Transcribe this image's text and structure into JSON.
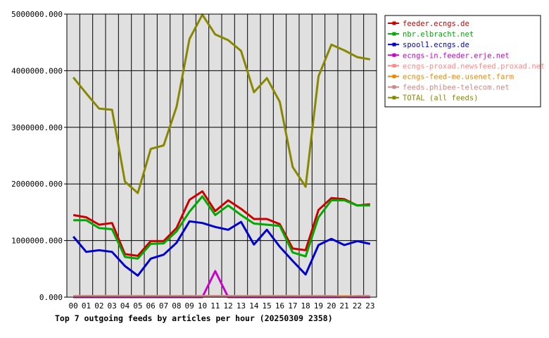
{
  "chart_data": {
    "type": "line",
    "title": "Top 7 outgoing feeds by articles per hour (20250309 2358)",
    "xlabel": "",
    "ylabel": "",
    "ylim": [
      0,
      5000000
    ],
    "yticks": [
      0,
      1000000,
      2000000,
      3000000,
      4000000,
      5000000
    ],
    "ytick_labels": [
      "0.000",
      "1000000.000",
      "2000000.000",
      "3000000.000",
      "4000000.000",
      "5000000.000"
    ],
    "grid": true,
    "legend_position": "right",
    "categories": [
      "00",
      "01",
      "02",
      "03",
      "04",
      "05",
      "06",
      "07",
      "08",
      "09",
      "10",
      "11",
      "12",
      "13",
      "14",
      "15",
      "16",
      "17",
      "18",
      "19",
      "20",
      "21",
      "22",
      "23"
    ],
    "series": [
      {
        "name": "feeder.ecngs.de",
        "color": "#cc0000",
        "values": [
          1450000,
          1410000,
          1280000,
          1310000,
          760000,
          730000,
          990000,
          990000,
          1220000,
          1720000,
          1870000,
          1520000,
          1710000,
          1560000,
          1380000,
          1380000,
          1290000,
          860000,
          830000,
          1540000,
          1750000,
          1730000,
          1620000,
          1640000
        ]
      },
      {
        "name": "nbr.elbracht.net",
        "color": "#00aa00",
        "values": [
          1360000,
          1360000,
          1220000,
          1200000,
          710000,
          680000,
          940000,
          950000,
          1160000,
          1510000,
          1780000,
          1450000,
          1620000,
          1450000,
          1300000,
          1280000,
          1260000,
          790000,
          720000,
          1410000,
          1710000,
          1710000,
          1620000,
          1620000
        ]
      },
      {
        "name": "spool1.ecngs.de",
        "color": "#0000cc",
        "values": [
          1070000,
          800000,
          830000,
          800000,
          550000,
          380000,
          680000,
          750000,
          960000,
          1340000,
          1310000,
          1240000,
          1190000,
          1330000,
          930000,
          1190000,
          890000,
          640000,
          400000,
          920000,
          1030000,
          920000,
          990000,
          940000
        ]
      },
      {
        "name": "ecngs-in.feeder.erje.net",
        "color": "#cc00cc",
        "values": [
          0,
          0,
          0,
          0,
          0,
          0,
          0,
          0,
          0,
          0,
          0,
          460000,
          0,
          0,
          0,
          0,
          0,
          0,
          0,
          0,
          0,
          0,
          0,
          0
        ]
      },
      {
        "name": "ecngs-proxad.newsfeed.proxad.net",
        "color": "#ff8888",
        "values": [
          10000,
          10000,
          10000,
          10000,
          10000,
          10000,
          10000,
          10000,
          10000,
          10000,
          10000,
          10000,
          10000,
          10000,
          10000,
          10000,
          10000,
          10000,
          10000,
          10000,
          10000,
          10000,
          10000,
          10000
        ]
      },
      {
        "name": "ecngs-feed-me.usenet.farm",
        "color": "#ee8800",
        "values": [
          15000,
          15000,
          15000,
          15000,
          15000,
          15000,
          15000,
          15000,
          15000,
          15000,
          15000,
          15000,
          15000,
          15000,
          15000,
          15000,
          15000,
          15000,
          15000,
          15000,
          15000,
          15000,
          15000,
          15000
        ]
      },
      {
        "name": "feeds.phibee-telecom.net",
        "color": "#cc8888",
        "values": [
          20000,
          20000,
          20000,
          20000,
          20000,
          20000,
          20000,
          20000,
          20000,
          20000,
          20000,
          20000,
          20000,
          20000,
          20000,
          20000,
          20000,
          20000,
          20000,
          20000,
          20000,
          0,
          20000,
          20000
        ]
      },
      {
        "name": "TOTAL (all feeds)",
        "color": "#888800",
        "values": [
          3880000,
          3600000,
          3330000,
          3310000,
          2040000,
          1840000,
          2620000,
          2680000,
          3360000,
          4560000,
          4990000,
          4640000,
          4540000,
          4350000,
          3620000,
          3870000,
          3450000,
          2300000,
          1950000,
          3900000,
          4460000,
          4360000,
          4240000,
          4200000
        ]
      }
    ]
  }
}
